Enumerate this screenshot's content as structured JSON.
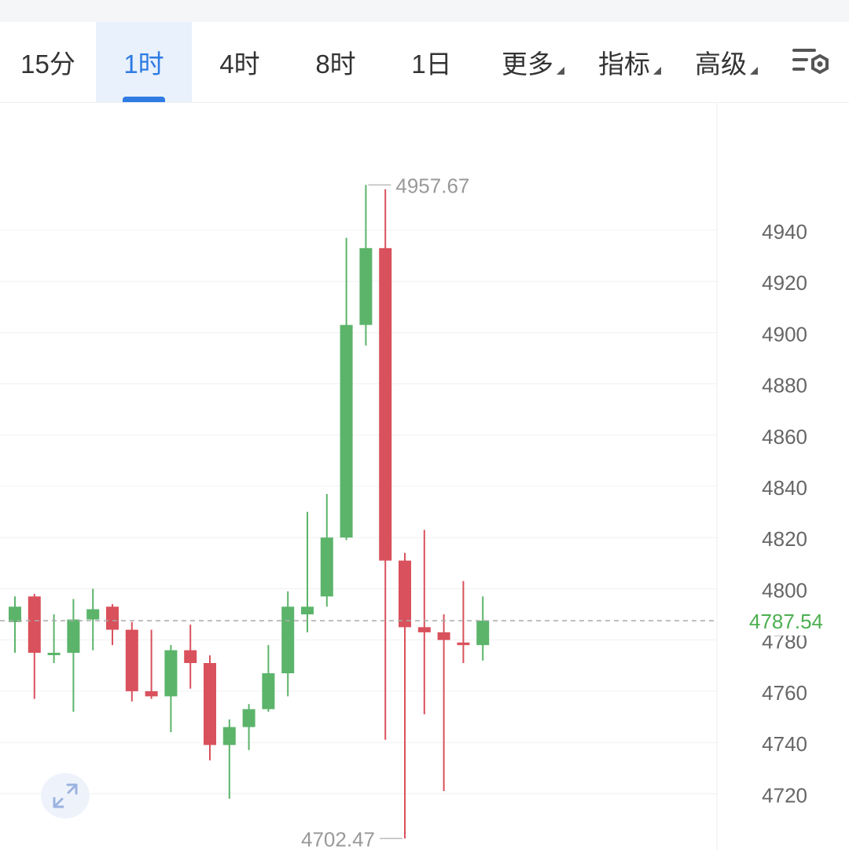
{
  "toolbar": {
    "tabs": [
      {
        "label": "15分",
        "active": false
      },
      {
        "label": "1时",
        "active": true
      },
      {
        "label": "4时",
        "active": false
      },
      {
        "label": "8时",
        "active": false
      },
      {
        "label": "1日",
        "active": false
      }
    ],
    "dropdowns": [
      {
        "label": "更多"
      },
      {
        "label": "指标"
      },
      {
        "label": "高级"
      }
    ],
    "settings_icon": "chart-settings-icon"
  },
  "colors": {
    "up": "#5bb46a",
    "down": "#d9515c",
    "accent": "#2f7be3",
    "last_price": "#4caf50"
  },
  "chart_data": {
    "type": "candlestick",
    "ylim": [
      4698,
      4990
    ],
    "yticks": [
      4720,
      4740,
      4760,
      4780,
      4800,
      4820,
      4840,
      4860,
      4880,
      4900,
      4920,
      4940
    ],
    "grid": true,
    "max_label": "4957.67",
    "min_label": "4702.47",
    "last_price": 4787.54,
    "last_price_label": "4787.54",
    "candles": [
      {
        "o": 4787,
        "h": 4797,
        "l": 4775,
        "c": 4793
      },
      {
        "o": 4797,
        "h": 4798,
        "l": 4757,
        "c": 4775
      },
      {
        "o": 4775,
        "h": 4790,
        "l": 4771,
        "c": 4775
      },
      {
        "o": 4775,
        "h": 4796,
        "l": 4752,
        "c": 4788
      },
      {
        "o": 4788,
        "h": 4800,
        "l": 4776,
        "c": 4792
      },
      {
        "o": 4793,
        "h": 4794,
        "l": 4778,
        "c": 4784
      },
      {
        "o": 4784,
        "h": 4787,
        "l": 4756,
        "c": 4760
      },
      {
        "o": 4760,
        "h": 4784,
        "l": 4757,
        "c": 4758
      },
      {
        "o": 4758,
        "h": 4778,
        "l": 4744,
        "c": 4776
      },
      {
        "o": 4776,
        "h": 4786,
        "l": 4761,
        "c": 4771
      },
      {
        "o": 4771,
        "h": 4774,
        "l": 4733,
        "c": 4739
      },
      {
        "o": 4739,
        "h": 4749,
        "l": 4718,
        "c": 4746
      },
      {
        "o": 4746,
        "h": 4755,
        "l": 4737,
        "c": 4753
      },
      {
        "o": 4753,
        "h": 4778,
        "l": 4752,
        "c": 4767
      },
      {
        "o": 4767,
        "h": 4799,
        "l": 4758,
        "c": 4793
      },
      {
        "o": 4790,
        "h": 4830,
        "l": 4783,
        "c": 4793
      },
      {
        "o": 4797,
        "h": 4837,
        "l": 4793,
        "c": 4820
      },
      {
        "o": 4820,
        "h": 4937,
        "l": 4819,
        "c": 4903
      },
      {
        "o": 4903,
        "h": 4957.67,
        "l": 4895,
        "c": 4933
      },
      {
        "o": 4933,
        "h": 4956,
        "l": 4741,
        "c": 4811
      },
      {
        "o": 4811,
        "h": 4814,
        "l": 4702.47,
        "c": 4785
      },
      {
        "o": 4785,
        "h": 4823,
        "l": 4751,
        "c": 4783
      },
      {
        "o": 4783,
        "h": 4790,
        "l": 4721,
        "c": 4780
      },
      {
        "o": 4779,
        "h": 4803,
        "l": 4771,
        "c": 4778
      },
      {
        "o": 4778,
        "h": 4797,
        "l": 4772,
        "c": 4787.54
      }
    ]
  }
}
